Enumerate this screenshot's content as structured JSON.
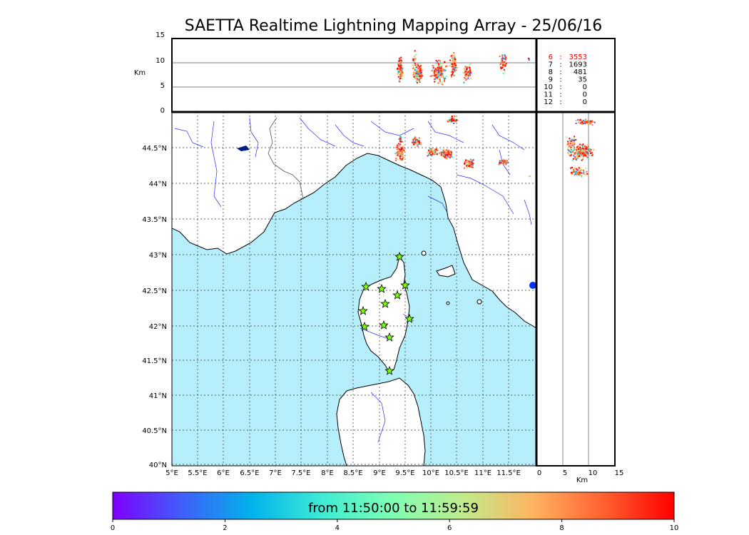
{
  "title": "SAETTA Realtime Lightning Mapping Array - 25/06/16",
  "altitude_panel": {
    "ylabel": "Km",
    "y_ticks": [
      "15",
      "10",
      "5",
      "0"
    ]
  },
  "side_panel": {
    "xlabel": "Km",
    "x_ticks": [
      "0",
      "5",
      "10",
      "15"
    ]
  },
  "map": {
    "lat_ticks": [
      "44.5°N",
      "44°N",
      "43.5°N",
      "43°N",
      "42.5°N",
      "42°N",
      "41.5°N",
      "41°N",
      "40.5°N",
      "40°N"
    ],
    "lon_ticks": [
      "5°E",
      "5.5°E",
      "6°E",
      "6.5°E",
      "7°E",
      "7.5°E",
      "8°E",
      "8.5°E",
      "9°E",
      "9.5°E",
      "10°E",
      "10.5°E",
      "11°E",
      "11.5°E"
    ],
    "sea_color": "#b7eefb",
    "station_marker_color": "#7cfc00",
    "station_count": 12
  },
  "station_stats": [
    {
      "stations": "6",
      "sep": ":",
      "count": "3553",
      "color": "#ff0000"
    },
    {
      "stations": "7",
      "sep": ":",
      "count": "1693",
      "color": "#000000"
    },
    {
      "stations": "8",
      "sep": ":",
      "count": "481",
      "color": "#000000"
    },
    {
      "stations": "9",
      "sep": ":",
      "count": "35",
      "color": "#000000"
    },
    {
      "stations": "10",
      "sep": ":",
      "count": "0",
      "color": "#000000"
    },
    {
      "stations": "11",
      "sep": ":",
      "count": "0",
      "color": "#000000"
    },
    {
      "stations": "12",
      "sep": ":",
      "count": "0",
      "color": "#000000"
    }
  ],
  "colorbar": {
    "label": "from 11:50:00 to 11:59:59",
    "ticks": [
      "0",
      "2",
      "4",
      "6",
      "8",
      "10"
    ],
    "colors": [
      "#7f00ff",
      "#3f60fa",
      "#00b4eb",
      "#40ecd3",
      "#80feb3",
      "#c0eb8c",
      "#ffb360",
      "#ff6030",
      "#ff0000"
    ]
  }
}
